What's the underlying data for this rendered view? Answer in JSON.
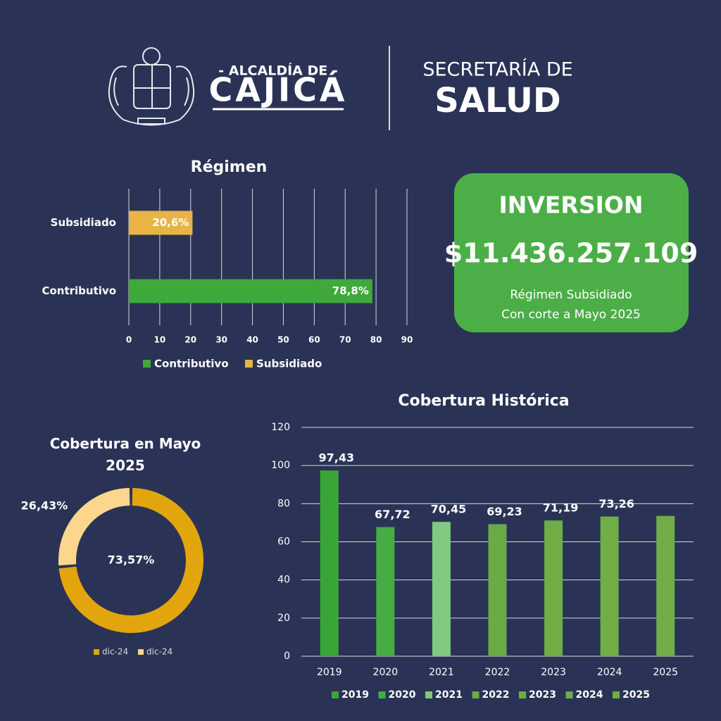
{
  "header": {
    "top": "- ALCALDÍA DE -",
    "city": "CAJICÁ",
    "office": "SECRETARÍA DE",
    "dept": "SALUD"
  },
  "investment": {
    "title": "INVERSION",
    "amount": "$11.436.257.109",
    "line1": "Régimen Subsidiado",
    "line2": "Con corte a  Mayo 2025"
  },
  "chart_data": [
    {
      "type": "bar",
      "horizontal": true,
      "title": "Régimen",
      "categories": [
        "Subsidiado",
        "Contributivo"
      ],
      "series": [
        {
          "name": "Contributivo",
          "color": "#3fa93c",
          "values": [
            null,
            78.8
          ],
          "value_labels": [
            null,
            "78,8%"
          ]
        },
        {
          "name": "Subsidiado",
          "color": "#e9b443",
          "values": [
            20.6,
            null
          ],
          "value_labels": [
            "20,6%",
            null
          ]
        }
      ],
      "xlim": [
        0,
        90
      ],
      "xticks": [
        0,
        10,
        20,
        30,
        40,
        50,
        60,
        70,
        80,
        90
      ],
      "grid": true,
      "legend": "bottom"
    },
    {
      "type": "donut",
      "title": "Cobertura en Mayo 2025",
      "categories": [
        "dic-24",
        "dic-24"
      ],
      "values": [
        73.57,
        26.43
      ],
      "value_labels": [
        "73,57%",
        "26,43%"
      ],
      "colors": [
        "#e2a50d",
        "#fbd68c"
      ],
      "legend": "bottom"
    },
    {
      "type": "bar",
      "title": "Cobertura Histórica",
      "categories": [
        "2019",
        "2020",
        "2021",
        "2022",
        "2023",
        "2024",
        "2025"
      ],
      "values": [
        97.43,
        67.72,
        70.45,
        69.23,
        71.19,
        73.26,
        73.57
      ],
      "value_labels": [
        "97,43",
        "67,72",
        "70,45",
        "69,23",
        "71,19",
        "73,26",
        null
      ],
      "colors": [
        "#3aa537",
        "#46ad45",
        "#80c97e",
        "#6aab48",
        "#70ad47",
        "#70ad47",
        "#70ad47"
      ],
      "ylim": [
        0,
        120
      ],
      "yticks": [
        0,
        20,
        40,
        60,
        80,
        100,
        120
      ],
      "grid": true,
      "legend": "bottom"
    }
  ]
}
